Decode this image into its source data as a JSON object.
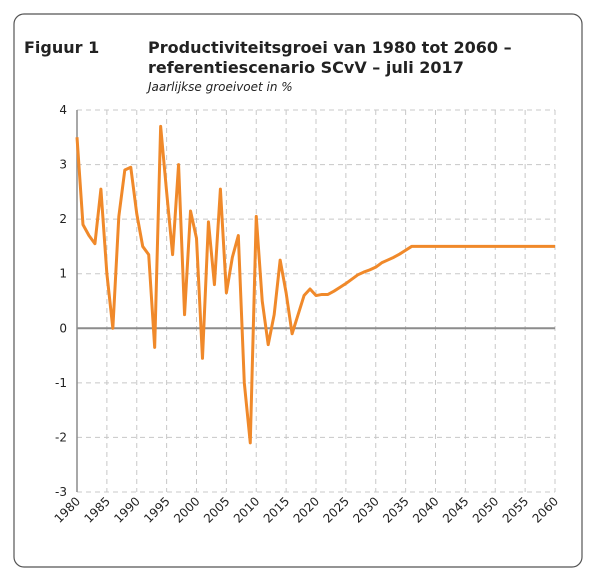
{
  "chart_data": {
    "type": "line",
    "figure_label": "Figuur 1",
    "title": [
      "Productiviteitsgroei van 1980 tot 2060 –",
      "referentiescenario SCvV – juli 2017"
    ],
    "subtitle": "Jaarlijkse groeivoet in %",
    "x": [
      1980,
      1981,
      1982,
      1983,
      1984,
      1985,
      1986,
      1987,
      1988,
      1989,
      1990,
      1991,
      1992,
      1993,
      1994,
      1995,
      1996,
      1997,
      1998,
      1999,
      2000,
      2001,
      2002,
      2003,
      2004,
      2005,
      2006,
      2007,
      2008,
      2009,
      2010,
      2011,
      2012,
      2013,
      2014,
      2015,
      2016,
      2017,
      2018,
      2019,
      2020,
      2021,
      2022,
      2023,
      2024,
      2025,
      2026,
      2027,
      2028,
      2029,
      2030,
      2031,
      2032,
      2033,
      2034,
      2035,
      2036,
      2037,
      2038,
      2039,
      2040,
      2041,
      2042,
      2043,
      2044,
      2045,
      2046,
      2047,
      2048,
      2049,
      2050,
      2051,
      2052,
      2053,
      2054,
      2055,
      2056,
      2057,
      2058,
      2059,
      2060
    ],
    "series": [
      {
        "name": "Productiviteitsgroei",
        "color": "#f0892a",
        "values": [
          3.5,
          1.9,
          1.7,
          1.55,
          2.55,
          1.0,
          0.0,
          2.05,
          2.9,
          2.95,
          2.1,
          1.5,
          1.35,
          -0.35,
          3.7,
          2.5,
          1.35,
          3.0,
          0.25,
          2.15,
          1.65,
          -0.55,
          1.95,
          0.8,
          2.55,
          0.65,
          1.3,
          1.7,
          -1.0,
          -2.1,
          2.05,
          0.5,
          -0.3,
          0.25,
          1.25,
          0.65,
          -0.1,
          0.25,
          0.6,
          0.72,
          0.6,
          0.62,
          0.62,
          0.68,
          0.75,
          0.82,
          0.9,
          0.98,
          1.03,
          1.07,
          1.12,
          1.2,
          1.25,
          1.3,
          1.36,
          1.43,
          1.5,
          1.5,
          1.5,
          1.5,
          1.5,
          1.5,
          1.5,
          1.5,
          1.5,
          1.5,
          1.5,
          1.5,
          1.5,
          1.5,
          1.5,
          1.5,
          1.5,
          1.5,
          1.5,
          1.5,
          1.5,
          1.5,
          1.5,
          1.5,
          1.5
        ]
      }
    ],
    "xlim": [
      1980,
      2060
    ],
    "xticks": [
      1980,
      1985,
      1990,
      1995,
      2000,
      2005,
      2010,
      2015,
      2020,
      2025,
      2030,
      2035,
      2040,
      2045,
      2050,
      2055,
      2060
    ],
    "ylim": [
      -3,
      4
    ],
    "yticks": [
      -3,
      -2,
      -1,
      0,
      1,
      2,
      3,
      4
    ],
    "grid": true
  }
}
